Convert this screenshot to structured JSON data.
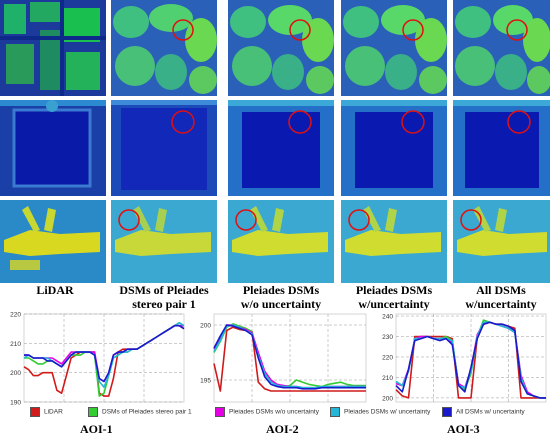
{
  "columns": [
    {
      "line1": "LiDAR",
      "line2": ""
    },
    {
      "line1": "DSMs of Pleiades",
      "line2": "stereo pair 1"
    },
    {
      "line1": "Pleiades DSMs",
      "line2": "w/o uncertainty"
    },
    {
      "line1": "Pleiades DSMs",
      "line2": "w/uncertainty"
    },
    {
      "line1": "All DSMs",
      "line2": "w/uncertainty"
    }
  ],
  "series_colors": {
    "lidar": "#d11a1a",
    "stereo_pair_1": "#33cc33",
    "wo_uncertainty": "#e600e6",
    "w_uncertainty": "#22b8d6",
    "all_dsms": "#1a1acc"
  },
  "legend": [
    {
      "label": "LiDAR",
      "color": "#d11a1a"
    },
    {
      "label": "DSMs of Pleiades stereo pair 1",
      "color": "#33cc33"
    },
    {
      "label": "Pleiades DSMs w/o uncertainty",
      "color": "#e600e6"
    },
    {
      "label": "Pleiades DSMs w/ uncertainty",
      "color": "#22b8d6"
    },
    {
      "label": "All DSMs w/ uncertainty",
      "color": "#1a1acc"
    }
  ],
  "chart_data": [
    {
      "type": "line",
      "title": "AOI-1",
      "ylim": [
        190,
        220
      ],
      "yticks": [
        190,
        200,
        210,
        220
      ],
      "series": [
        {
          "name": "LiDAR",
          "values": [
            202,
            201,
            199,
            199,
            200,
            200,
            200,
            194,
            193,
            199,
            205,
            206,
            207,
            207,
            207,
            207,
            193,
            192,
            192,
            198,
            207,
            208,
            208,
            208,
            208,
            209,
            210,
            211,
            212,
            213,
            214,
            215,
            216,
            216,
            215
          ]
        },
        {
          "name": "DSMs of Pleiades stereo pair 1",
          "values": [
            205,
            205,
            204,
            203,
            203,
            204,
            204,
            203,
            202,
            204,
            206,
            206,
            206,
            207,
            207,
            206,
            192,
            193,
            199,
            205,
            206,
            207,
            207,
            208,
            208,
            209,
            210,
            211,
            212,
            213,
            214,
            215,
            216,
            217,
            216
          ]
        },
        {
          "name": "Pleiades DSMs w/o uncertainty",
          "values": [
            206,
            206,
            205,
            205,
            205,
            205,
            205,
            204,
            203,
            205,
            207,
            207,
            207,
            207,
            207,
            207,
            198,
            197,
            200,
            206,
            207,
            207,
            208,
            208,
            208,
            209,
            210,
            211,
            212,
            213,
            214,
            215,
            216,
            216,
            216
          ]
        },
        {
          "name": "Pleiades DSMs w/ uncertainty",
          "values": [
            205,
            206,
            205,
            205,
            205,
            205,
            204,
            203,
            202,
            204,
            206,
            207,
            207,
            207,
            207,
            206,
            197,
            195,
            199,
            205,
            206,
            207,
            207,
            208,
            208,
            209,
            210,
            211,
            212,
            213,
            214,
            215,
            216,
            217,
            216
          ]
        },
        {
          "name": "All DSMs w/ uncertainty",
          "values": [
            206,
            206,
            205,
            205,
            205,
            204,
            204,
            203,
            202,
            204,
            206,
            207,
            207,
            207,
            207,
            206,
            198,
            197,
            200,
            206,
            207,
            207,
            208,
            208,
            208,
            209,
            210,
            211,
            212,
            213,
            214,
            215,
            216,
            216,
            215
          ]
        }
      ]
    },
    {
      "type": "line",
      "title": "AOI-2",
      "ylim": [
        193,
        201
      ],
      "yticks": [
        195,
        200
      ],
      "series": [
        {
          "name": "LiDAR",
          "values": [
            196.5,
            194.0,
            199.5,
            199.8,
            199.6,
            199.5,
            199.4,
            194.8,
            194.2,
            194.0,
            194.0,
            194.0,
            194.0,
            194.0,
            194.0,
            194.0,
            194.0,
            194.0,
            194.0,
            194.0,
            194.0,
            194.0,
            194.0,
            194.0,
            194.0
          ]
        },
        {
          "name": "DSMs of Pleiades stereo pair 1",
          "values": [
            197.5,
            198.5,
            199.8,
            200.1,
            199.9,
            199.7,
            199.4,
            197.0,
            195.5,
            194.9,
            194.5,
            194.4,
            194.5,
            195.0,
            194.8,
            194.6,
            194.5,
            194.4,
            194.6,
            194.7,
            194.8,
            194.6,
            194.5,
            194.5,
            194.5
          ]
        },
        {
          "name": "Pleiades DSMs w/o uncertainty",
          "values": [
            197.8,
            198.8,
            200.0,
            200.0,
            199.8,
            199.6,
            199.3,
            197.5,
            195.8,
            195.0,
            194.6,
            194.5,
            194.4,
            194.4,
            194.3,
            194.3,
            194.3,
            194.3,
            194.4,
            194.4,
            194.4,
            194.4,
            194.4,
            194.4,
            194.4
          ]
        },
        {
          "name": "Pleiades DSMs w/ uncertainty",
          "values": [
            197.6,
            198.6,
            199.9,
            200.0,
            199.8,
            199.5,
            199.2,
            197.2,
            195.6,
            194.8,
            194.5,
            194.4,
            194.4,
            194.4,
            194.3,
            194.3,
            194.3,
            194.4,
            194.4,
            194.4,
            194.4,
            194.4,
            194.4,
            194.4,
            194.4
          ]
        },
        {
          "name": "All DSMs w/ uncertainty",
          "values": [
            197.9,
            199.0,
            200.0,
            199.9,
            199.7,
            199.5,
            199.1,
            197.0,
            195.3,
            194.6,
            194.4,
            194.3,
            194.3,
            194.3,
            194.2,
            194.2,
            194.2,
            194.3,
            194.3,
            194.3,
            194.3,
            194.3,
            194.3,
            194.3,
            194.3
          ]
        }
      ]
    },
    {
      "type": "line",
      "title": "AOI-3",
      "ylim": [
        198,
        241
      ],
      "yticks": [
        200,
        210,
        220,
        230,
        240
      ],
      "series": [
        {
          "name": "LiDAR",
          "values": [
            204,
            201,
            200,
            230,
            230,
            230,
            230,
            230,
            230,
            229,
            200,
            200,
            200,
            230,
            236,
            237,
            236,
            236,
            235,
            234,
            200,
            200,
            200,
            200,
            200
          ]
        },
        {
          "name": "DSMs of Pleiades stereo pair 1",
          "values": [
            208,
            206,
            213,
            229,
            230,
            230,
            229,
            229,
            230,
            228,
            206,
            204,
            212,
            230,
            238,
            237,
            236,
            235,
            234,
            232,
            210,
            202,
            201,
            200,
            200
          ]
        },
        {
          "name": "Pleiades DSMs w/o uncertainty",
          "values": [
            207,
            206,
            214,
            229,
            230,
            230,
            229,
            229,
            229,
            227,
            207,
            205,
            214,
            231,
            236,
            237,
            236,
            235,
            234,
            232,
            211,
            203,
            201,
            200,
            200
          ]
        },
        {
          "name": "Pleiades DSMs w/ uncertainty",
          "values": [
            208,
            206,
            213,
            229,
            229,
            230,
            229,
            229,
            229,
            228,
            206,
            205,
            213,
            230,
            237,
            237,
            236,
            235,
            234,
            232,
            210,
            202,
            201,
            200,
            200
          ]
        },
        {
          "name": "All DSMs w/ uncertainty",
          "values": [
            206,
            203,
            214,
            228,
            229,
            230,
            229,
            228,
            229,
            226,
            206,
            203,
            215,
            229,
            236,
            237,
            236,
            236,
            235,
            233,
            208,
            202,
            201,
            200,
            200
          ]
        }
      ]
    }
  ]
}
